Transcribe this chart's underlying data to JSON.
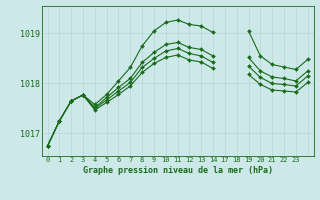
{
  "bg_color": "#cce8e8",
  "plot_bg_color": "#cce8e8",
  "line_color": "#1a6b1a",
  "grid_color_v": "#b8d4d4",
  "grid_color_h": "#b8d4d4",
  "xlabel": "Graphe pression niveau de la mer (hPa)",
  "xlim": [
    -0.5,
    22.5
  ],
  "ylim": [
    1016.55,
    1019.55
  ],
  "yticks": [
    1017,
    1018,
    1019
  ],
  "ytick_labels": [
    "1017",
    "1018",
    "1019"
  ],
  "xtick_positions": [
    0,
    1,
    2,
    3,
    4,
    5,
    6,
    7,
    8,
    9,
    10,
    11,
    12,
    13,
    14,
    15,
    16,
    17,
    18,
    19,
    20,
    21,
    22
  ],
  "xtick_labels": [
    "0",
    "1",
    "2",
    "3",
    "4",
    "5",
    "6",
    "7",
    "8",
    "9",
    "10",
    "11",
    "12",
    "13",
    "14",
    "17",
    "18",
    "19",
    "20",
    "21",
    "22",
    "23",
    ""
  ],
  "series": [
    {
      "x": [
        0,
        1,
        2,
        3,
        4,
        5,
        6,
        7,
        8,
        9,
        10,
        11,
        12,
        13,
        14,
        15,
        16,
        17,
        18,
        19,
        20,
        21,
        22
      ],
      "y": [
        1016.75,
        1017.25,
        1017.65,
        1017.77,
        1017.58,
        1017.78,
        1018.05,
        1018.32,
        1018.75,
        1019.05,
        1019.22,
        1019.27,
        1019.18,
        1019.15,
        1019.02,
        null,
        null,
        1019.05,
        1018.55,
        1018.38,
        1018.33,
        1018.28,
        1018.48
      ]
    },
    {
      "x": [
        0,
        1,
        2,
        3,
        4,
        5,
        6,
        7,
        8,
        9,
        10,
        11,
        12,
        13,
        14,
        15,
        16,
        17,
        18,
        19,
        20,
        21,
        22
      ],
      "y": [
        1016.75,
        1017.25,
        1017.65,
        1017.77,
        1017.52,
        1017.72,
        1017.92,
        1018.1,
        1018.42,
        1018.62,
        1018.78,
        1018.82,
        1018.72,
        1018.68,
        1018.55,
        null,
        null,
        1018.52,
        1018.25,
        1018.13,
        1018.1,
        1018.05,
        1018.25
      ]
    },
    {
      "x": [
        0,
        1,
        2,
        3,
        4,
        5,
        6,
        7,
        8,
        9,
        10,
        11,
        12,
        13,
        14,
        15,
        16,
        17,
        18,
        19,
        20,
        21,
        22
      ],
      "y": [
        1016.75,
        1017.25,
        1017.65,
        1017.77,
        1017.5,
        1017.67,
        1017.85,
        1018.02,
        1018.32,
        1018.5,
        1018.65,
        1018.7,
        1018.6,
        1018.55,
        1018.42,
        null,
        null,
        1018.35,
        1018.12,
        1018.0,
        1017.98,
        1017.95,
        1018.15
      ]
    },
    {
      "x": [
        0,
        1,
        2,
        3,
        4,
        5,
        6,
        7,
        8,
        9,
        10,
        11,
        12,
        13,
        14,
        15,
        16,
        17,
        18,
        19,
        20,
        21,
        22
      ],
      "y": [
        1016.75,
        1017.25,
        1017.65,
        1017.77,
        1017.47,
        1017.62,
        1017.78,
        1017.95,
        1018.22,
        1018.4,
        1018.52,
        1018.57,
        1018.47,
        1018.43,
        1018.3,
        null,
        null,
        1018.18,
        1017.98,
        1017.87,
        1017.85,
        1017.83,
        1018.02
      ]
    }
  ]
}
